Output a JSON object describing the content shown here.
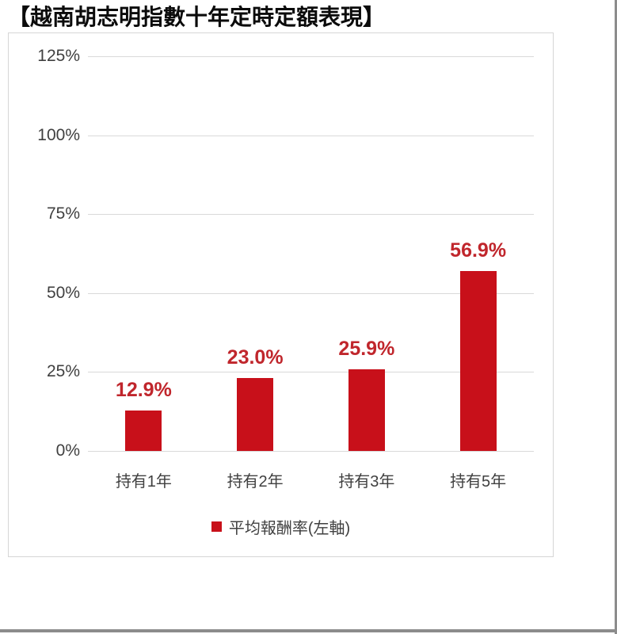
{
  "title": "【越南胡志明指數十年定時定額表現】",
  "chart_data": {
    "type": "bar",
    "title": "越南胡志明指數十年定時定額表現",
    "categories": [
      "持有1年",
      "持有2年",
      "持有3年",
      "持有5年"
    ],
    "series": [
      {
        "name": "平均報酬率(左軸)",
        "values": [
          12.9,
          23.0,
          25.9,
          56.9
        ]
      }
    ],
    "data_labels": [
      "12.9%",
      "23.0%",
      "25.9%",
      "56.9%"
    ],
    "ylim": [
      0,
      125
    ],
    "ytick_values": [
      0,
      25,
      50,
      75,
      100,
      125
    ],
    "yticks": [
      "0%",
      "25%",
      "50%",
      "75%",
      "100%",
      "125%"
    ],
    "xlabel": "",
    "ylabel": "",
    "grid": true,
    "legend": {
      "label": "平均報酬率(左軸)",
      "position": "bottom-center"
    },
    "colors": {
      "bar": "#c8101a",
      "value_label": "#c0262c",
      "axis_text": "#404040",
      "gridline": "#d9d9d9",
      "chart_border": "#d6d6d6",
      "frame": "#8c8c8c"
    }
  }
}
